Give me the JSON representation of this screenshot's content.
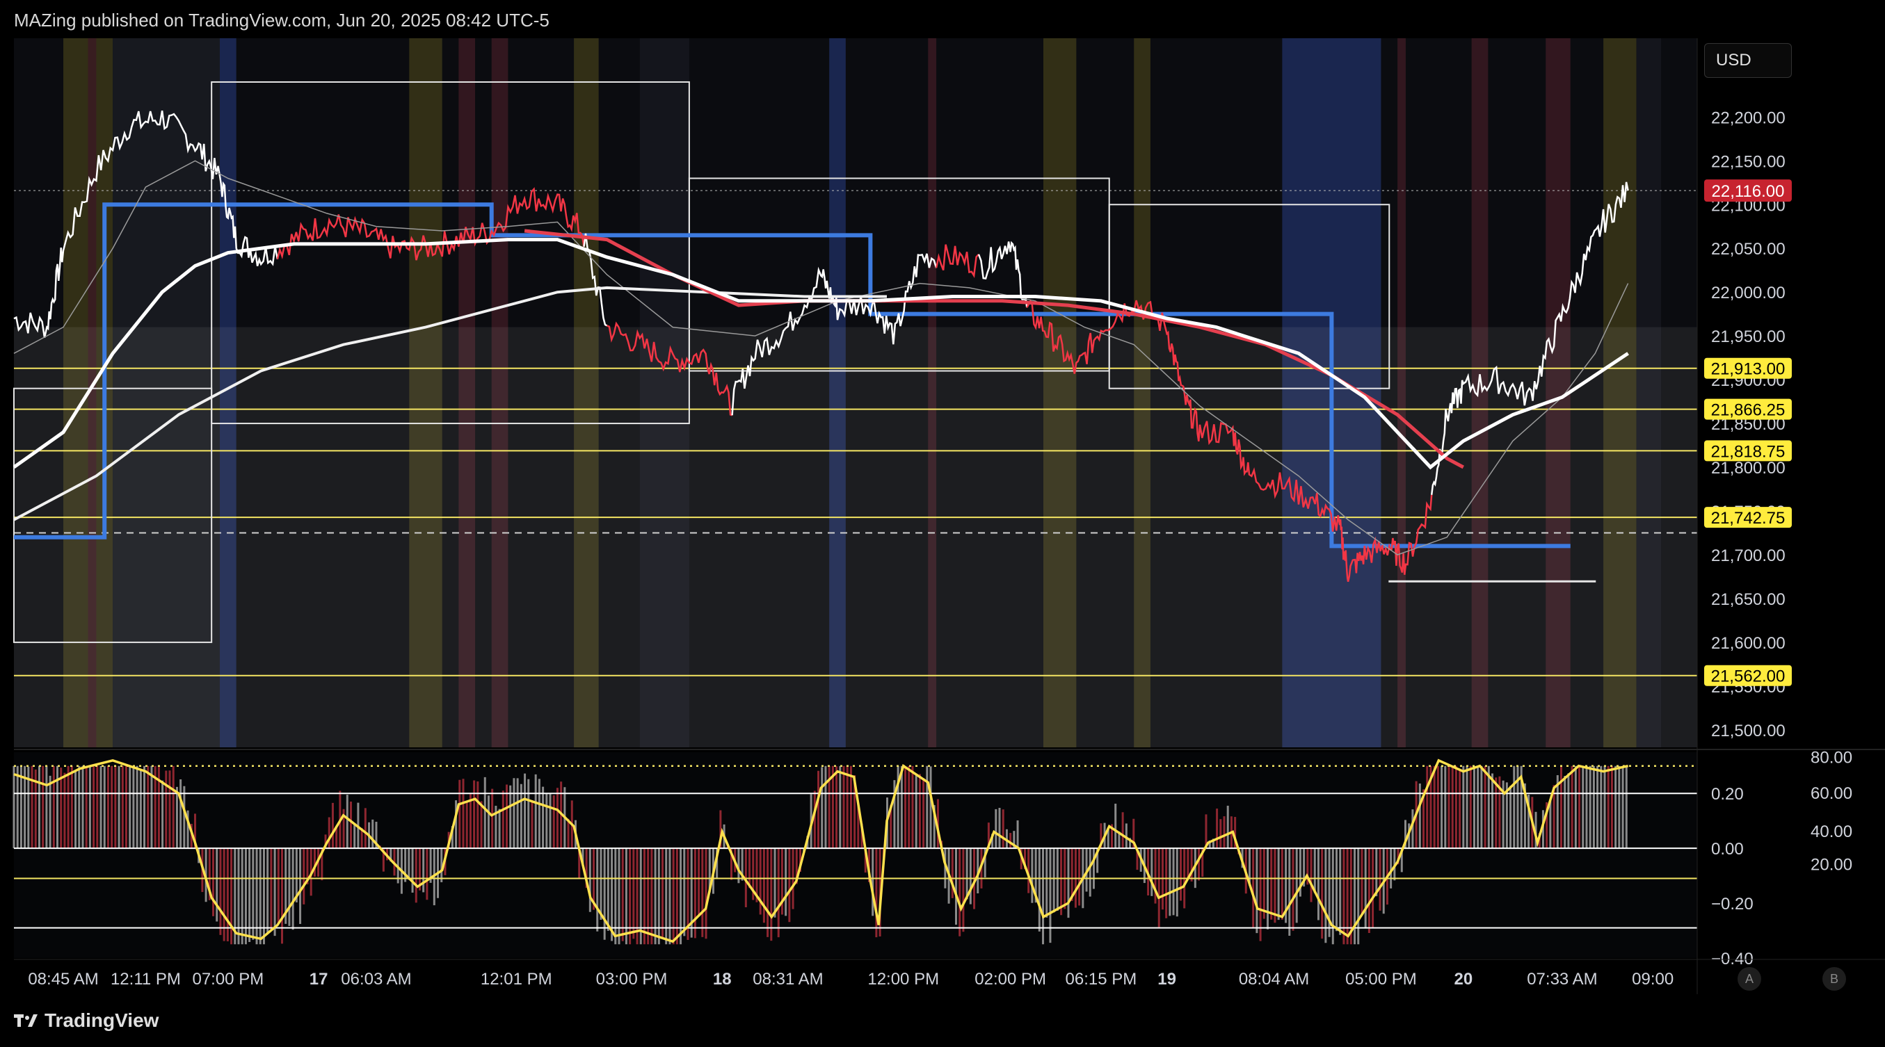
{
  "header": {
    "publisher": "MAZing published on TradingView.com, Jun 20, 2025 08:42 UTC-5"
  },
  "currency_button": "USD",
  "brand": "TradingView",
  "buttons": {
    "a": "A",
    "b": "B"
  },
  "colors": {
    "price_up": "#ffffff",
    "price_down": "#f23645",
    "level_line": "#f5e663",
    "blue_box": "#3d7be0",
    "current_price_bg": "#c7232f",
    "label_bg": "#ffec3d"
  },
  "chart_data": [
    {
      "type": "line",
      "panel": "price",
      "x_tick_labels": [
        "08:45 AM",
        "12:11 PM",
        "07:00 PM",
        "17",
        "06:03 AM",
        "12:01 PM",
        "03:00 PM",
        "18",
        "08:31 AM",
        "12:00 PM",
        "02:00 PM",
        "06:15 PM",
        "19",
        "08:04 AM",
        "05:00 PM",
        "20",
        "07:33 AM",
        "09:00"
      ],
      "y_tick_labels": [
        "22,200.00",
        "22,150.00",
        "22,100.00",
        "22,050.00",
        "22,000.00",
        "21,950.00",
        "21,900.00",
        "21,850.00",
        "21,800.00",
        "21,750.00",
        "21,700.00",
        "21,650.00",
        "21,600.00",
        "21,550.00",
        "21,500.00"
      ],
      "ylim": [
        21480,
        22290
      ],
      "current_price": 22116,
      "current_price_label": "22,116.00",
      "levels": [
        {
          "value": 21913,
          "label": "21,913.00"
        },
        {
          "value": 21866.25,
          "label": "21,866.25"
        },
        {
          "value": 21818.75,
          "label": "21,818.75"
        },
        {
          "value": 21742.75,
          "label": "21,742.75"
        },
        {
          "value": 21562,
          "label": "21,562.00"
        }
      ],
      "dashed_level": 21725,
      "price_path": [
        [
          0,
          21970
        ],
        [
          0.02,
          21960
        ],
        [
          0.03,
          22050
        ],
        [
          0.05,
          22140
        ],
        [
          0.07,
          22190
        ],
        [
          0.09,
          22200
        ],
        [
          0.11,
          22170
        ],
        [
          0.125,
          22130
        ],
        [
          0.135,
          22060
        ],
        [
          0.15,
          22040
        ],
        [
          0.17,
          22060
        ],
        [
          0.19,
          22080
        ],
        [
          0.21,
          22070
        ],
        [
          0.23,
          22050
        ],
        [
          0.25,
          22050
        ],
        [
          0.27,
          22060
        ],
        [
          0.29,
          22070
        ],
        [
          0.31,
          22110
        ],
        [
          0.33,
          22100
        ],
        [
          0.345,
          22070
        ],
        [
          0.36,
          21960
        ],
        [
          0.38,
          21940
        ],
        [
          0.4,
          21920
        ],
        [
          0.42,
          21930
        ],
        [
          0.435,
          21870
        ],
        [
          0.45,
          21930
        ],
        [
          0.47,
          21960
        ],
        [
          0.49,
          22020
        ],
        [
          0.5,
          21980
        ],
        [
          0.52,
          21990
        ],
        [
          0.535,
          21950
        ],
        [
          0.55,
          22040
        ],
        [
          0.57,
          22040
        ],
        [
          0.59,
          22030
        ],
        [
          0.605,
          22060
        ],
        [
          0.615,
          21980
        ],
        [
          0.63,
          21950
        ],
        [
          0.645,
          21910
        ],
        [
          0.66,
          21960
        ],
        [
          0.68,
          21990
        ],
        [
          0.7,
          21960
        ],
        [
          0.71,
          21880
        ],
        [
          0.72,
          21840
        ],
        [
          0.74,
          21840
        ],
        [
          0.75,
          21790
        ],
        [
          0.77,
          21780
        ],
        [
          0.79,
          21760
        ],
        [
          0.805,
          21730
        ],
        [
          0.81,
          21680
        ],
        [
          0.82,
          21700
        ],
        [
          0.835,
          21710
        ],
        [
          0.845,
          21690
        ],
        [
          0.86,
          21760
        ],
        [
          0.87,
          21860
        ],
        [
          0.88,
          21890
        ],
        [
          0.9,
          21900
        ],
        [
          0.92,
          21880
        ],
        [
          0.935,
          21950
        ],
        [
          0.95,
          22020
        ],
        [
          0.965,
          22080
        ],
        [
          0.98,
          22116
        ]
      ],
      "ma_thick": [
        [
          0,
          21800
        ],
        [
          0.03,
          21840
        ],
        [
          0.06,
          21930
        ],
        [
          0.09,
          22000
        ],
        [
          0.11,
          22030
        ],
        [
          0.13,
          22045
        ],
        [
          0.17,
          22055
        ],
        [
          0.25,
          22055
        ],
        [
          0.3,
          22060
        ],
        [
          0.33,
          22060
        ],
        [
          0.36,
          22040
        ],
        [
          0.4,
          22020
        ],
        [
          0.44,
          21990
        ],
        [
          0.47,
          21990
        ],
        [
          0.52,
          21990
        ],
        [
          0.57,
          21995
        ],
        [
          0.62,
          21995
        ],
        [
          0.66,
          21990
        ],
        [
          0.7,
          21970
        ],
        [
          0.73,
          21960
        ],
        [
          0.78,
          21930
        ],
        [
          0.82,
          21880
        ],
        [
          0.86,
          21800
        ],
        [
          0.88,
          21830
        ],
        [
          0.91,
          21860
        ],
        [
          0.94,
          21880
        ],
        [
          0.98,
          21930
        ]
      ],
      "ma_red": [
        [
          0.31,
          22070
        ],
        [
          0.36,
          22060
        ],
        [
          0.4,
          22020
        ],
        [
          0.44,
          21985
        ],
        [
          0.48,
          21990
        ],
        [
          0.52,
          21990
        ],
        [
          0.56,
          21990
        ],
        [
          0.6,
          21990
        ],
        [
          0.64,
          21985
        ],
        [
          0.68,
          21975
        ],
        [
          0.72,
          21960
        ],
        [
          0.76,
          21940
        ],
        [
          0.8,
          21905
        ],
        [
          0.84,
          21860
        ],
        [
          0.87,
          21810
        ],
        [
          0.88,
          21800
        ]
      ],
      "ma_slow": [
        [
          0,
          21740
        ],
        [
          0.05,
          21790
        ],
        [
          0.1,
          21860
        ],
        [
          0.15,
          21910
        ],
        [
          0.2,
          21940
        ],
        [
          0.25,
          21960
        ],
        [
          0.3,
          21985
        ],
        [
          0.33,
          22000
        ],
        [
          0.36,
          22005
        ],
        [
          0.42,
          22000
        ],
        [
          0.48,
          21995
        ],
        [
          0.53,
          21995
        ]
      ],
      "ma_thin": [
        [
          0,
          21930
        ],
        [
          0.03,
          21960
        ],
        [
          0.06,
          22050
        ],
        [
          0.08,
          22120
        ],
        [
          0.11,
          22150
        ],
        [
          0.13,
          22130
        ],
        [
          0.16,
          22110
        ],
        [
          0.19,
          22090
        ],
        [
          0.22,
          22075
        ],
        [
          0.26,
          22070
        ],
        [
          0.3,
          22075
        ],
        [
          0.33,
          22080
        ],
        [
          0.36,
          22020
        ],
        [
          0.4,
          21960
        ],
        [
          0.45,
          21950
        ],
        [
          0.5,
          21990
        ],
        [
          0.55,
          22010
        ],
        [
          0.58,
          22005
        ],
        [
          0.62,
          21990
        ],
        [
          0.65,
          21960
        ],
        [
          0.68,
          21940
        ],
        [
          0.72,
          21870
        ],
        [
          0.75,
          21830
        ],
        [
          0.78,
          21790
        ],
        [
          0.81,
          21740
        ],
        [
          0.84,
          21700
        ],
        [
          0.87,
          21720
        ],
        [
          0.91,
          21830
        ],
        [
          0.94,
          21880
        ],
        [
          0.96,
          21930
        ],
        [
          0.98,
          22010
        ]
      ],
      "boxes": [
        {
          "x0": 0.0,
          "x1": 0.12,
          "top": 21890,
          "bot": 21600,
          "color": "white"
        },
        {
          "x0": 0.12,
          "x1": 0.41,
          "top": 22240,
          "bot": 21850,
          "color": "white"
        },
        {
          "x0": 0.41,
          "x1": 0.665,
          "top": 22130,
          "bot": 21910,
          "color": "white"
        },
        {
          "x0": 0.665,
          "x1": 0.835,
          "top": 22100,
          "bot": 21890,
          "color": "white"
        },
        {
          "x0": 0.835,
          "x1": 0.96,
          "top": 21670,
          "bot": 21670,
          "color": "white"
        }
      ],
      "blue_steps": [
        [
          0,
          21720
        ],
        [
          0.055,
          21720
        ],
        [
          0.055,
          22100
        ],
        [
          0.29,
          22100
        ],
        [
          0.29,
          22065
        ],
        [
          0.52,
          22065
        ],
        [
          0.52,
          21975
        ],
        [
          0.8,
          21975
        ],
        [
          0.8,
          21710
        ],
        [
          0.945,
          21710
        ]
      ]
    },
    {
      "type": "line",
      "panel": "oscillator",
      "y_tick_labels_left": [
        "0.20",
        "0.00",
        "−0.20",
        "−0.40"
      ],
      "y_tick_labels_right": [
        "80.00",
        "60.00",
        "40.00",
        "20.00"
      ],
      "ylim": [
        -0.4,
        0.35
      ],
      "reference_levels": [
        0.2,
        0.0,
        -0.11,
        -0.29
      ],
      "dotted_level": 0.3,
      "osc_line": [
        [
          0,
          0.27
        ],
        [
          0.02,
          0.23
        ],
        [
          0.04,
          0.29
        ],
        [
          0.06,
          0.32
        ],
        [
          0.08,
          0.28
        ],
        [
          0.1,
          0.2
        ],
        [
          0.11,
          0.02
        ],
        [
          0.12,
          -0.18
        ],
        [
          0.135,
          -0.31
        ],
        [
          0.15,
          -0.33
        ],
        [
          0.16,
          -0.28
        ],
        [
          0.18,
          -0.1
        ],
        [
          0.19,
          0.02
        ],
        [
          0.2,
          0.12
        ],
        [
          0.215,
          0.05
        ],
        [
          0.23,
          -0.05
        ],
        [
          0.245,
          -0.14
        ],
        [
          0.26,
          -0.08
        ],
        [
          0.27,
          0.16
        ],
        [
          0.28,
          0.18
        ],
        [
          0.29,
          0.12
        ],
        [
          0.31,
          0.18
        ],
        [
          0.33,
          0.14
        ],
        [
          0.34,
          0.08
        ],
        [
          0.35,
          -0.18
        ],
        [
          0.365,
          -0.32
        ],
        [
          0.38,
          -0.3
        ],
        [
          0.4,
          -0.34
        ],
        [
          0.42,
          -0.22
        ],
        [
          0.43,
          0.06
        ],
        [
          0.44,
          -0.08
        ],
        [
          0.46,
          -0.25
        ],
        [
          0.475,
          -0.12
        ],
        [
          0.49,
          0.22
        ],
        [
          0.5,
          0.28
        ],
        [
          0.51,
          0.26
        ],
        [
          0.52,
          -0.12
        ],
        [
          0.525,
          -0.28
        ],
        [
          0.53,
          0.1
        ],
        [
          0.54,
          0.3
        ],
        [
          0.555,
          0.24
        ],
        [
          0.565,
          -0.05
        ],
        [
          0.575,
          -0.22
        ],
        [
          0.585,
          -0.1
        ],
        [
          0.595,
          0.06
        ],
        [
          0.61,
          0.0
        ],
        [
          0.625,
          -0.25
        ],
        [
          0.64,
          -0.2
        ],
        [
          0.655,
          -0.05
        ],
        [
          0.665,
          0.08
        ],
        [
          0.68,
          0.02
        ],
        [
          0.695,
          -0.18
        ],
        [
          0.71,
          -0.14
        ],
        [
          0.725,
          0.02
        ],
        [
          0.74,
          0.06
        ],
        [
          0.755,
          -0.22
        ],
        [
          0.77,
          -0.25
        ],
        [
          0.785,
          -0.1
        ],
        [
          0.8,
          -0.28
        ],
        [
          0.81,
          -0.32
        ],
        [
          0.825,
          -0.18
        ],
        [
          0.84,
          -0.05
        ],
        [
          0.855,
          0.18
        ],
        [
          0.865,
          0.32
        ],
        [
          0.88,
          0.28
        ],
        [
          0.89,
          0.3
        ],
        [
          0.905,
          0.2
        ],
        [
          0.915,
          0.26
        ],
        [
          0.925,
          0.02
        ],
        [
          0.935,
          0.22
        ],
        [
          0.95,
          0.3
        ],
        [
          0.965,
          0.28
        ],
        [
          0.98,
          0.3
        ]
      ],
      "x_tick_labels": [
        "08:45 AM",
        "12:11 PM",
        "07:00 PM",
        "17",
        "06:03 AM",
        "12:01 PM",
        "03:00 PM",
        "18",
        "08:31 AM",
        "12:00 PM",
        "02:00 PM",
        "06:15 PM",
        "19",
        "08:04 AM",
        "05:00 PM",
        "20",
        "07:33 AM",
        "09:00"
      ]
    }
  ]
}
